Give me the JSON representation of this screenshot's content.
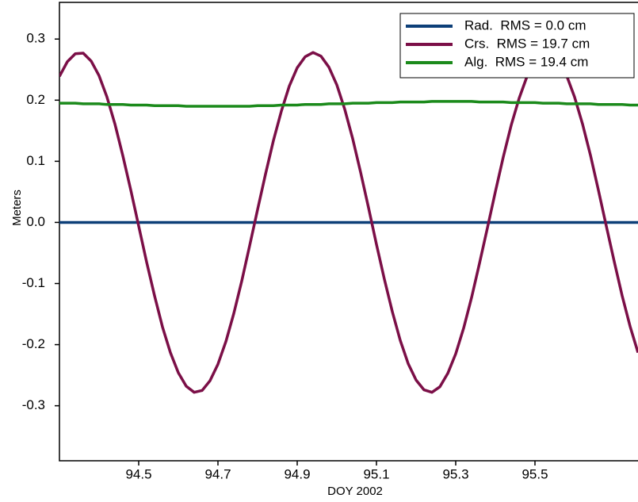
{
  "chart_data": {
    "type": "line",
    "xlabel": "DOY 2002",
    "ylabel": "Meters",
    "x": [
      94.3,
      94.32,
      94.34,
      94.36,
      94.38,
      94.4,
      94.42,
      94.44,
      94.46,
      94.48,
      94.5,
      94.52,
      94.54,
      94.56,
      94.58,
      94.6,
      94.62,
      94.64,
      94.66,
      94.68,
      94.7,
      94.72,
      94.74,
      94.76,
      94.78,
      94.8,
      94.82,
      94.84,
      94.86,
      94.88,
      94.9,
      94.92,
      94.94,
      94.96,
      94.98,
      95.0,
      95.02,
      95.04,
      95.06,
      95.08,
      95.1,
      95.12,
      95.14,
      95.16,
      95.18,
      95.2,
      95.22,
      95.24,
      95.26,
      95.28,
      95.3,
      95.32,
      95.34,
      95.36,
      95.38,
      95.4,
      95.42,
      95.44,
      95.46,
      95.48,
      95.5,
      95.52,
      95.54,
      95.56,
      95.58,
      95.6,
      95.62,
      95.64,
      95.66,
      95.68,
      95.7,
      95.72,
      95.74,
      95.76
    ],
    "series": [
      {
        "name": "Rad.  RMS = 0.0 cm",
        "color": "#0d3f78",
        "values": [
          0,
          0,
          0,
          0,
          0,
          0,
          0,
          0,
          0,
          0,
          0,
          0,
          0,
          0,
          0,
          0,
          0,
          0,
          0,
          0,
          0,
          0,
          0,
          0,
          0,
          0,
          0,
          0,
          0,
          0,
          0,
          0,
          0,
          0,
          0,
          0,
          0,
          0,
          0,
          0,
          0,
          0,
          0,
          0,
          0,
          0,
          0,
          0,
          0,
          0,
          0,
          0,
          0,
          0,
          0,
          0,
          0,
          0,
          0,
          0,
          0,
          0,
          0,
          0,
          0,
          0,
          0,
          0,
          0,
          0,
          0,
          0,
          0,
          0
        ]
      },
      {
        "name": "Crs.  RMS = 19.7 cm",
        "color": "#7b0f47",
        "values": [
          0.239,
          0.263,
          0.276,
          0.277,
          0.264,
          0.24,
          0.205,
          0.161,
          0.109,
          0.053,
          -0.006,
          -0.065,
          -0.12,
          -0.171,
          -0.213,
          -0.246,
          -0.268,
          -0.278,
          -0.275,
          -0.259,
          -0.232,
          -0.195,
          -0.149,
          -0.096,
          -0.038,
          0.021,
          0.079,
          0.134,
          0.182,
          0.223,
          0.253,
          0.271,
          0.278,
          0.272,
          0.254,
          0.225,
          0.185,
          0.137,
          0.082,
          0.024,
          -0.036,
          -0.093,
          -0.146,
          -0.193,
          -0.231,
          -0.258,
          -0.274,
          -0.278,
          -0.269,
          -0.247,
          -0.215,
          -0.173,
          -0.123,
          -0.067,
          -0.009,
          0.05,
          0.107,
          0.159,
          0.203,
          0.239,
          0.263,
          0.276,
          0.277,
          0.264,
          0.24,
          0.205,
          0.161,
          0.11,
          0.053,
          -0.006,
          -0.064,
          -0.12,
          -0.17,
          -0.213
        ]
      },
      {
        "name": "Alg.  RMS = 19.4 cm",
        "color": "#1b8a1b",
        "values": [
          0.195,
          0.195,
          0.195,
          0.194,
          0.194,
          0.194,
          0.193,
          0.193,
          0.193,
          0.192,
          0.192,
          0.192,
          0.191,
          0.191,
          0.191,
          0.191,
          0.19,
          0.19,
          0.19,
          0.19,
          0.19,
          0.19,
          0.19,
          0.19,
          0.19,
          0.191,
          0.191,
          0.191,
          0.192,
          0.192,
          0.192,
          0.193,
          0.193,
          0.193,
          0.194,
          0.194,
          0.194,
          0.195,
          0.195,
          0.195,
          0.196,
          0.196,
          0.196,
          0.197,
          0.197,
          0.197,
          0.197,
          0.198,
          0.198,
          0.198,
          0.198,
          0.198,
          0.198,
          0.197,
          0.197,
          0.197,
          0.197,
          0.196,
          0.196,
          0.196,
          0.196,
          0.195,
          0.195,
          0.195,
          0.194,
          0.194,
          0.194,
          0.194,
          0.193,
          0.193,
          0.193,
          0.193,
          0.192,
          0.192
        ]
      }
    ],
    "xlim": [
      94.3,
      95.76
    ],
    "xticks": [
      94.5,
      94.7,
      94.9,
      95.1,
      95.3,
      95.5
    ],
    "ylim": [
      -0.39,
      0.36
    ],
    "yticks": [
      -0.3,
      -0.2,
      -0.1,
      {
        "value": 0,
        "label": "0.0"
      },
      0.1,
      0.2,
      0.3
    ],
    "legend": "upper right"
  }
}
